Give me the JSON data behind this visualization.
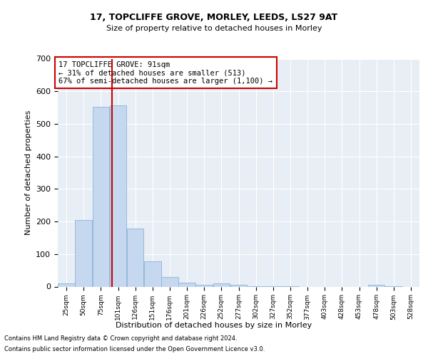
{
  "title1": "17, TOPCLIFFE GROVE, MORLEY, LEEDS, LS27 9AT",
  "title2": "Size of property relative to detached houses in Morley",
  "xlabel": "Distribution of detached houses by size in Morley",
  "ylabel": "Number of detached properties",
  "footnote1": "Contains HM Land Registry data © Crown copyright and database right 2024.",
  "footnote2": "Contains public sector information licensed under the Open Government Licence v3.0.",
  "annotation_line1": "17 TOPCLIFFE GROVE: 91sqm",
  "annotation_line2": "← 31% of detached houses are smaller (513)",
  "annotation_line3": "67% of semi-detached houses are larger (1,100) →",
  "property_sqm": 91,
  "bar_color": "#c5d8f0",
  "bar_edge_color": "#8ab4d8",
  "marker_color": "#cc0000",
  "background_color": "#e8eef5",
  "categories": [
    "25sqm",
    "50sqm",
    "75sqm",
    "101sqm",
    "126sqm",
    "151sqm",
    "176sqm",
    "201sqm",
    "226sqm",
    "252sqm",
    "277sqm",
    "302sqm",
    "327sqm",
    "352sqm",
    "377sqm",
    "403sqm",
    "428sqm",
    "453sqm",
    "478sqm",
    "503sqm",
    "528sqm"
  ],
  "bin_left_edges": [
    12.5,
    37.5,
    62.5,
    87.5,
    112.5,
    137.5,
    162.5,
    187.5,
    212.5,
    237.5,
    262.5,
    287.5,
    312.5,
    337.5,
    362.5,
    387.5,
    412.5,
    437.5,
    462.5,
    487.5,
    512.5
  ],
  "bin_width": 25,
  "values": [
    10,
    205,
    553,
    557,
    178,
    78,
    30,
    12,
    5,
    10,
    5,
    2,
    2,
    2,
    0,
    0,
    0,
    0,
    5,
    2,
    0
  ],
  "ylim": [
    0,
    700
  ],
  "yticks": [
    0,
    100,
    200,
    300,
    400,
    500,
    600,
    700
  ],
  "xlim_left": 12.5,
  "xlim_right": 537.5
}
